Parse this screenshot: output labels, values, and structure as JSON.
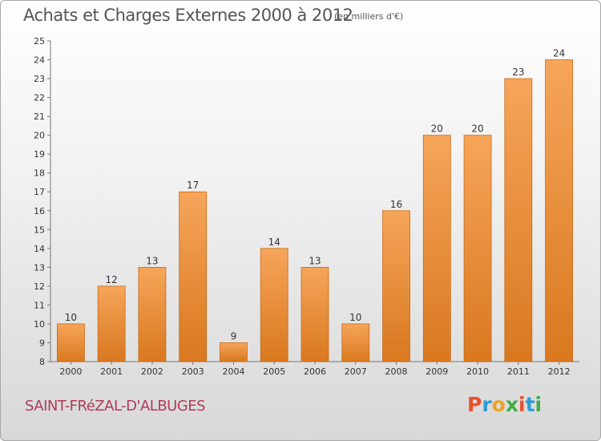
{
  "title": "Achats et Charges Externes 2000 à 2012",
  "unit": "(en milliers d'€)",
  "location": "SAINT-FRéZAL-D'ALBUGES",
  "brand": {
    "letters": [
      "P",
      "r",
      "o",
      "x",
      "i",
      "t",
      "i"
    ],
    "colors": [
      "#e8502a",
      "#2e9ad6",
      "#f0a020",
      "#3fae49",
      "#e8502a",
      "#2e9ad6",
      "#3fae49"
    ]
  },
  "colors": {
    "bar_light": "#f6a55a",
    "bar_dark": "#d9781f",
    "bar_border": "#c86a15"
  },
  "chart_data": {
    "type": "bar",
    "categories": [
      "2000",
      "2001",
      "2002",
      "2003",
      "2004",
      "2005",
      "2006",
      "2007",
      "2008",
      "2009",
      "2010",
      "2011",
      "2012"
    ],
    "values": [
      10,
      12,
      13,
      17,
      9,
      14,
      13,
      10,
      16,
      20,
      20,
      23,
      24
    ],
    "ylim": [
      8,
      25
    ],
    "yticks": [
      8,
      9,
      10,
      11,
      12,
      13,
      14,
      15,
      16,
      17,
      18,
      19,
      20,
      21,
      22,
      23,
      24,
      25
    ],
    "grid": false,
    "data_labels": true
  }
}
